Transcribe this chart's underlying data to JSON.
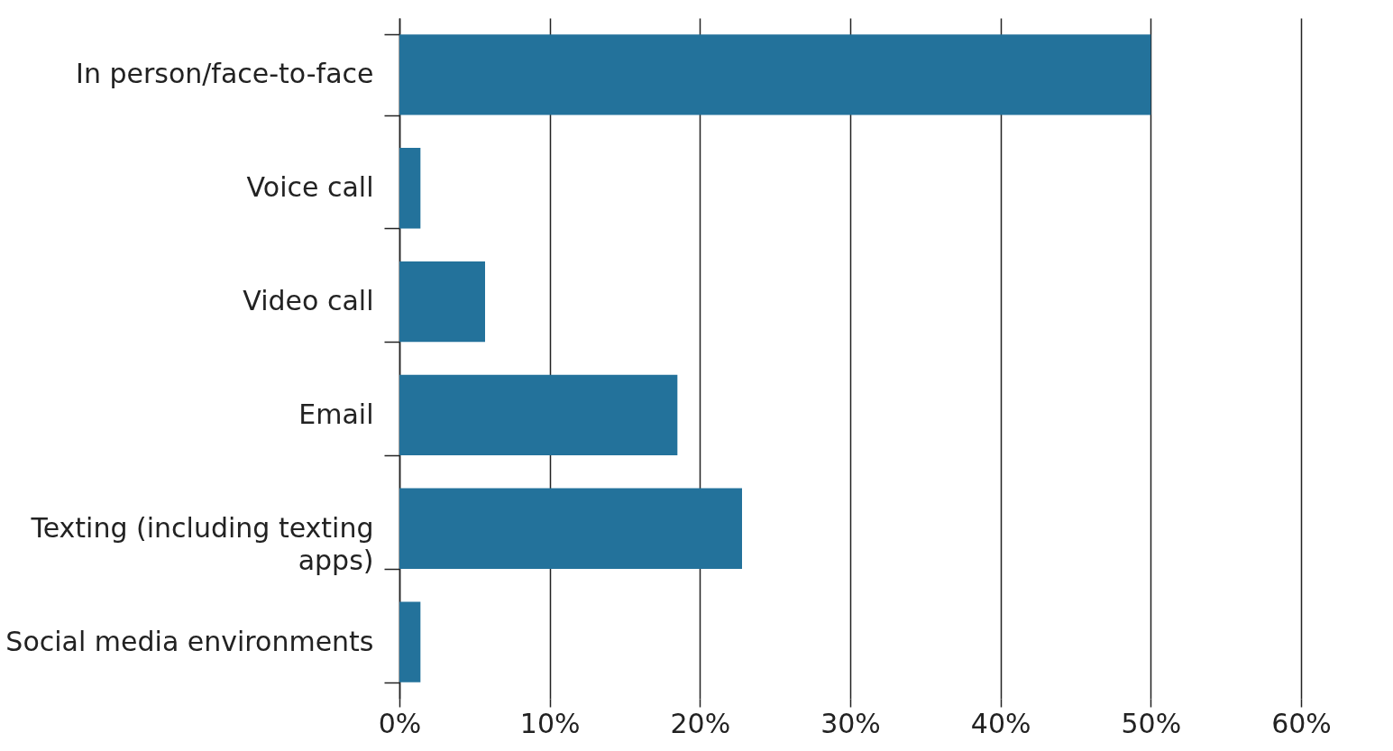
{
  "chart_data": {
    "type": "bar",
    "orientation": "horizontal",
    "categories": [
      "In person/face-to-face",
      "Voice call",
      "Video call",
      "Email",
      "Texting (including texting apps)",
      "Social media environments"
    ],
    "values": [
      50,
      1.4,
      5.7,
      18.5,
      22.8,
      1.4
    ],
    "color": "#23729b",
    "xlim": [
      0,
      60
    ],
    "xticks": [
      {
        "value": 0,
        "label": "0%"
      },
      {
        "value": 10,
        "label": "10%"
      },
      {
        "value": 20,
        "label": "20%"
      },
      {
        "value": 30,
        "label": "30%"
      },
      {
        "value": 40,
        "label": "40%"
      },
      {
        "value": 50,
        "label": "50%"
      },
      {
        "value": 60,
        "label": "60%"
      }
    ],
    "grid": "x"
  }
}
